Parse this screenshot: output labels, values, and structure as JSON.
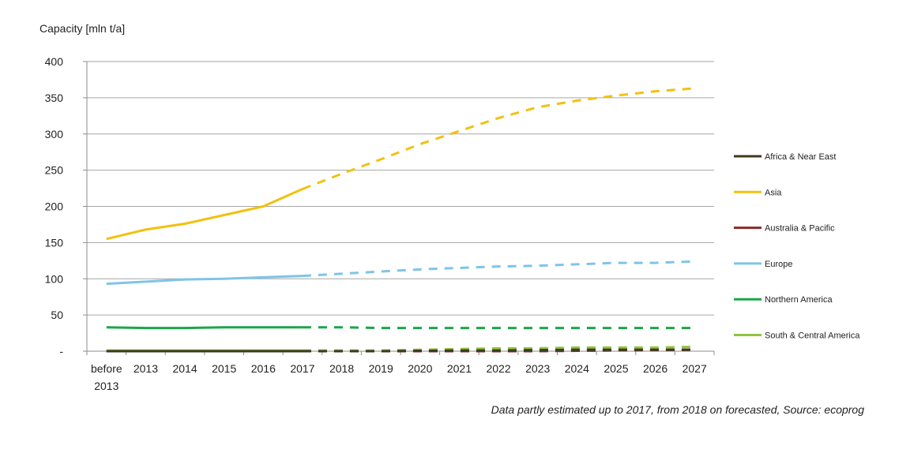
{
  "chart_data": {
    "type": "line",
    "ylabel": "Capacity [mln t/a]",
    "ylim": [
      0,
      400
    ],
    "yticks": [
      {
        "value": 0,
        "label": "-"
      },
      {
        "value": 50,
        "label": "50"
      },
      {
        "value": 100,
        "label": "100"
      },
      {
        "value": 150,
        "label": "150"
      },
      {
        "value": 200,
        "label": "200"
      },
      {
        "value": 250,
        "label": "250"
      },
      {
        "value": 300,
        "label": "300"
      },
      {
        "value": 350,
        "label": "350"
      },
      {
        "value": 400,
        "label": "400"
      }
    ],
    "categories": [
      [
        "before",
        "2013"
      ],
      [
        "2013"
      ],
      [
        "2014"
      ],
      [
        "2015"
      ],
      [
        "2016"
      ],
      [
        "2017"
      ],
      [
        "2018"
      ],
      [
        "2019"
      ],
      [
        "2020"
      ],
      [
        "2021"
      ],
      [
        "2022"
      ],
      [
        "2023"
      ],
      [
        "2024"
      ],
      [
        "2025"
      ],
      [
        "2026"
      ],
      [
        "2027"
      ]
    ],
    "forecast_from": "2018",
    "grid": "horizontal",
    "legend_position": "right",
    "series": [
      {
        "name": "Africa & Near East",
        "color": "#3d3a1f",
        "values": [
          0,
          0,
          0,
          0,
          0,
          0,
          0,
          0,
          0.5,
          1,
          1,
          1.5,
          2,
          2,
          2,
          2
        ]
      },
      {
        "name": "Asia",
        "color": "#f2c10f",
        "values": [
          155,
          168,
          176,
          188,
          200,
          224,
          245,
          265,
          286,
          304,
          322,
          337,
          346,
          353,
          359,
          363
        ]
      },
      {
        "name": "Australia & Pacific",
        "color": "#8b2a2a",
        "values": [
          0,
          0,
          0,
          0,
          0,
          0,
          0,
          0,
          0,
          0,
          0,
          0,
          0.5,
          1,
          1.5,
          2
        ]
      },
      {
        "name": "Europe",
        "color": "#7fc4e8",
        "values": [
          93,
          96,
          99,
          100,
          102,
          104,
          107,
          110,
          113,
          115,
          117,
          118,
          120,
          122,
          122,
          124
        ]
      },
      {
        "name": "Northern America",
        "color": "#1aa64a",
        "values": [
          33,
          32,
          32,
          33,
          33,
          33,
          33,
          32,
          32,
          32,
          32,
          32,
          32,
          32,
          32,
          32
        ]
      },
      {
        "name": "South & Central America",
        "color": "#8cc63e",
        "values": [
          1,
          1,
          1,
          1,
          1,
          1,
          1,
          1,
          2,
          3,
          4,
          4,
          5,
          5,
          5,
          6
        ]
      }
    ]
  },
  "footnote": "Data partly estimated up to 2017, from 2018 on forecasted, Source: ecoprog"
}
